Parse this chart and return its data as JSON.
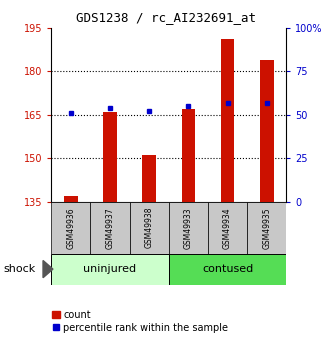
{
  "title": "GDS1238 / rc_AI232691_at",
  "samples": [
    "GSM49936",
    "GSM49937",
    "GSM49938",
    "GSM49933",
    "GSM49934",
    "GSM49935"
  ],
  "counts": [
    137,
    166,
    151,
    167,
    191,
    184
  ],
  "percentiles": [
    51,
    54,
    52,
    55,
    57,
    57
  ],
  "ylim_left": [
    135,
    195
  ],
  "ylim_right": [
    0,
    100
  ],
  "yticks_left": [
    135,
    150,
    165,
    180,
    195
  ],
  "yticks_right": [
    0,
    25,
    50,
    75,
    100
  ],
  "ytick_labels_right": [
    "0",
    "25",
    "50",
    "75",
    "100%"
  ],
  "groups": [
    {
      "label": "uninjured",
      "start": 0,
      "end": 3
    },
    {
      "label": "contused",
      "start": 3,
      "end": 6
    }
  ],
  "group_colors": [
    "#ccffcc",
    "#55dd55"
  ],
  "bar_color": "#cc1100",
  "dot_color": "#0000cc",
  "bg_color": "#ffffff",
  "plot_bg": "#ffffff",
  "grid_color": "#000000",
  "tick_area_bg": "#c8c8c8",
  "shock_label": "shock",
  "legend_count": "count",
  "legend_pct": "percentile rank within the sample"
}
